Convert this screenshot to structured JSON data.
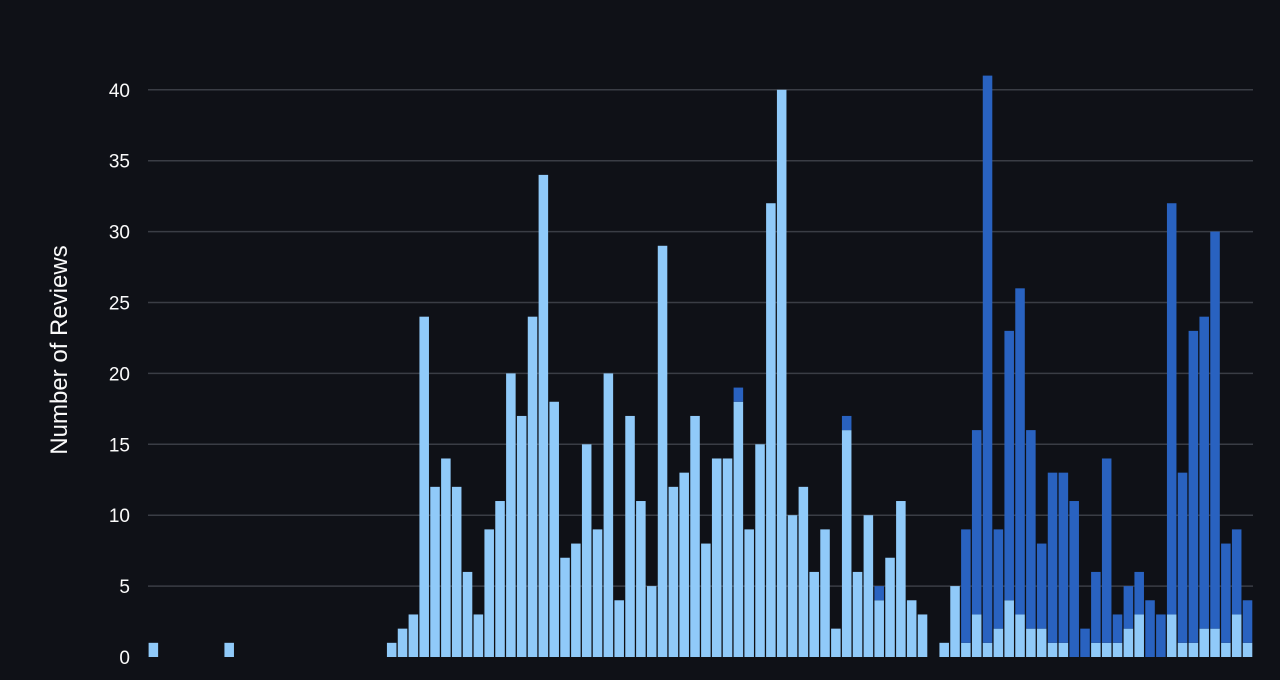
{
  "chart_data": {
    "type": "bar",
    "stacked": true,
    "orientation": "vertical",
    "title": "",
    "xlabel": "",
    "ylabel": "Number of Reviews",
    "ylim": [
      0,
      42
    ],
    "yticks": [
      0,
      5,
      10,
      15,
      20,
      25,
      30,
      35,
      40
    ],
    "grid": "horizontal",
    "bar_count": 102,
    "series": [
      {
        "color": "#90caf9",
        "values": [
          1,
          0,
          0,
          0,
          0,
          0,
          0,
          1,
          0,
          0,
          0,
          0,
          0,
          0,
          0,
          0,
          0,
          0,
          0,
          0,
          0,
          0,
          1,
          2,
          3,
          24,
          12,
          14,
          12,
          6,
          3,
          9,
          11,
          20,
          17,
          24,
          34,
          18,
          7,
          8,
          15,
          9,
          20,
          4,
          17,
          11,
          5,
          29,
          12,
          13,
          17,
          8,
          14,
          14,
          18,
          9,
          15,
          32,
          40,
          10,
          12,
          6,
          9,
          2,
          16,
          6,
          10,
          4,
          7,
          11,
          4,
          3,
          0,
          1,
          5,
          1,
          3,
          1,
          2,
          4,
          3,
          2,
          2,
          1,
          1,
          0,
          0,
          1,
          1,
          1,
          2,
          3,
          0,
          0,
          3,
          1,
          1,
          2,
          2,
          1,
          3,
          1
        ]
      },
      {
        "color": "#2962c0",
        "values": [
          0,
          0,
          0,
          0,
          0,
          0,
          0,
          0,
          0,
          0,
          0,
          0,
          0,
          0,
          0,
          0,
          0,
          0,
          0,
          0,
          0,
          0,
          0,
          0,
          0,
          0,
          0,
          0,
          0,
          0,
          0,
          0,
          0,
          0,
          0,
          0,
          0,
          0,
          0,
          0,
          0,
          0,
          0,
          0,
          0,
          0,
          0,
          0,
          0,
          0,
          0,
          0,
          0,
          0,
          1,
          0,
          0,
          0,
          0,
          0,
          0,
          0,
          0,
          0,
          1,
          0,
          0,
          1,
          0,
          0,
          0,
          0,
          0,
          0,
          0,
          8,
          13,
          40,
          7,
          19,
          23,
          14,
          6,
          12,
          12,
          11,
          2,
          5,
          13,
          2,
          3,
          3,
          4,
          3,
          29,
          12,
          22,
          22,
          28,
          7,
          6,
          3
        ]
      }
    ]
  }
}
